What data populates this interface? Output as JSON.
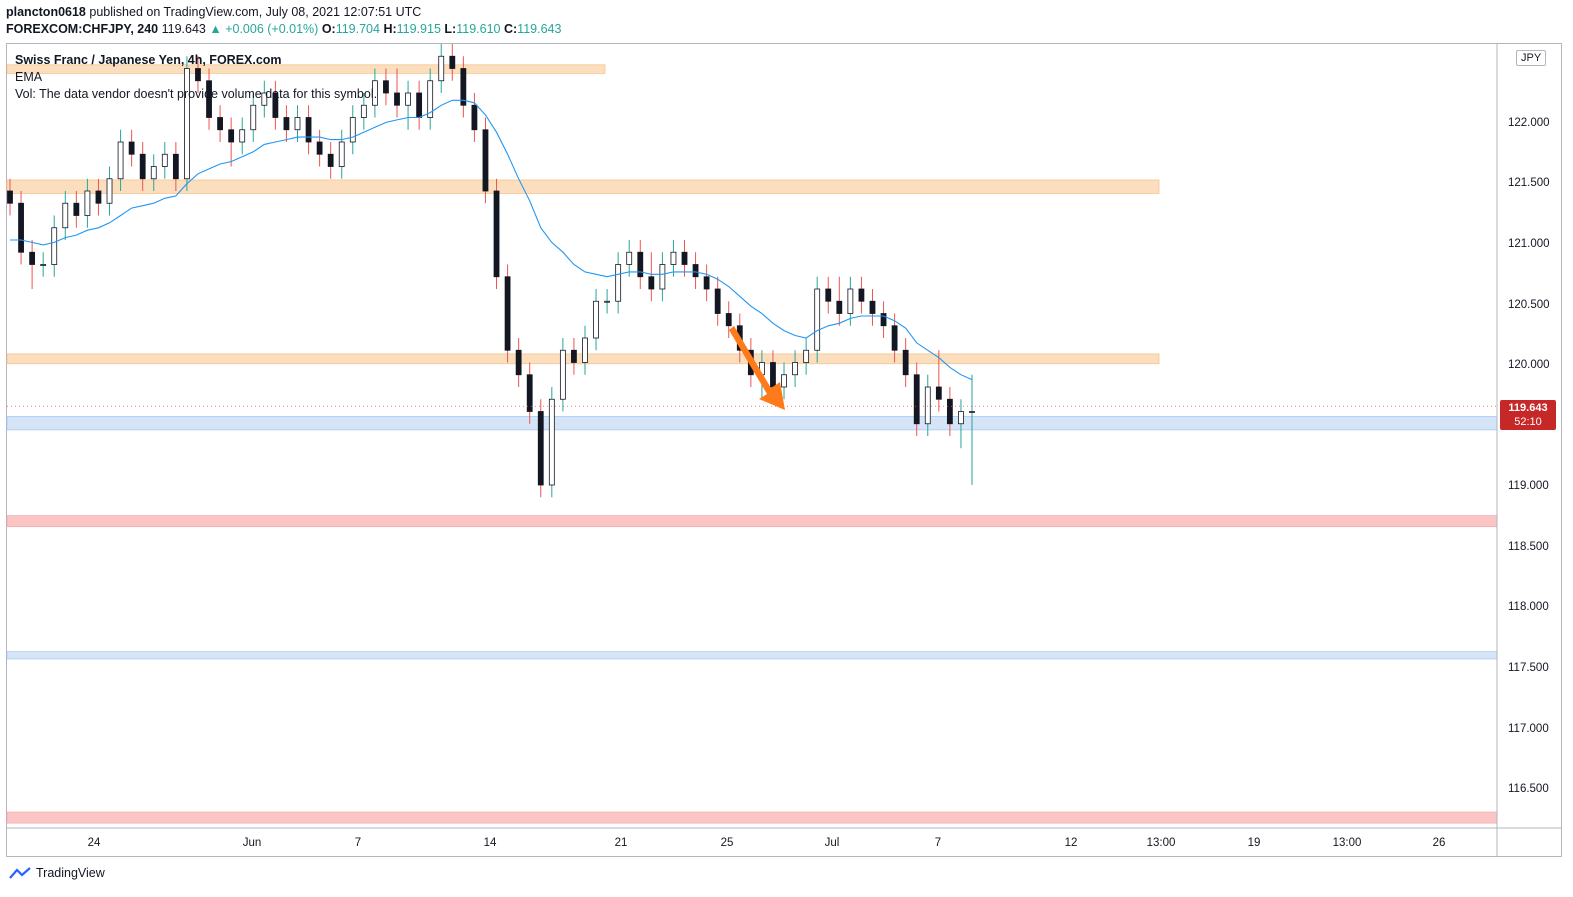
{
  "header": {
    "author": "plancton0618",
    "published_text": "published on TradingView.com, July 08, 2021 12:07:51 UTC",
    "symbol": "FOREXCOM:CHFJPY, 240",
    "last": "119.643",
    "change": "▲ +0.006 (+0.01%)",
    "o_label": "O:",
    "o_value": "119.704",
    "h_label": "H:",
    "h_value": "119.915",
    "l_label": "L:",
    "l_value": "119.610",
    "c_label": "C:",
    "c_value": "119.643"
  },
  "legend": {
    "title": "Swiss Franc / Japanese Yen, 4h, FOREX.com",
    "ema": "EMA",
    "vol": "Vol: The data vendor doesn't provide volume data for this symbol."
  },
  "currency_button": "JPY",
  "price_tag": {
    "price": "119.643",
    "countdown": "52:10"
  },
  "footer": {
    "brand": "TradingView"
  },
  "colors": {
    "up": "#26a69a",
    "down": "#ef5350",
    "candle_body": "#131722",
    "ema": "#2196f3",
    "zone_orange": "#fbd9b3",
    "zone_blue": "#cfe0f7",
    "zone_red": "#fbbcbc",
    "arrow": "#ff7a1a",
    "price_tag": "#c62828"
  },
  "chart_data": {
    "type": "candlestick",
    "y_axis_labels": [
      "122.000",
      "121.500",
      "121.000",
      "120.500",
      "120.000",
      "119.000",
      "118.500",
      "118.000",
      "117.500",
      "117.000",
      "116.500"
    ],
    "ylim": [
      116.2,
      122.6
    ],
    "x_axis_labels": [
      "24",
      "Jun",
      "7",
      "14",
      "21",
      "25",
      "Jul",
      "7",
      "12",
      "13:00",
      "19",
      "13:00",
      "26"
    ],
    "zones": [
      {
        "color": "orange",
        "from": 122.36,
        "to": 122.43
      },
      {
        "color": "orange",
        "from": 121.38,
        "to": 121.49
      },
      {
        "color": "orange",
        "from": 119.99,
        "to": 120.07
      },
      {
        "color": "blue",
        "from": 119.45,
        "to": 119.56
      },
      {
        "color": "red",
        "from": 118.66,
        "to": 118.75
      },
      {
        "color": "blue",
        "from": 117.58,
        "to": 117.64
      },
      {
        "color": "red",
        "from": 116.24,
        "to": 116.33
      }
    ],
    "candles": [
      [
        121.4,
        121.5,
        121.2,
        121.3
      ],
      [
        121.3,
        121.4,
        120.8,
        120.9
      ],
      [
        120.9,
        121.0,
        120.6,
        120.8
      ],
      [
        120.8,
        120.9,
        120.7,
        120.8
      ],
      [
        120.8,
        121.2,
        120.7,
        121.1
      ],
      [
        121.1,
        121.4,
        121.0,
        121.3
      ],
      [
        121.3,
        121.4,
        121.1,
        121.2
      ],
      [
        121.2,
        121.5,
        121.1,
        121.4
      ],
      [
        121.4,
        121.5,
        121.2,
        121.3
      ],
      [
        121.3,
        121.6,
        121.2,
        121.5
      ],
      [
        121.5,
        121.9,
        121.4,
        121.8
      ],
      [
        121.8,
        121.9,
        121.6,
        121.7
      ],
      [
        121.7,
        121.8,
        121.4,
        121.5
      ],
      [
        121.5,
        121.7,
        121.4,
        121.6
      ],
      [
        121.6,
        121.8,
        121.5,
        121.7
      ],
      [
        121.7,
        121.8,
        121.4,
        121.5
      ],
      [
        121.5,
        122.5,
        121.4,
        122.4
      ],
      [
        122.4,
        122.5,
        122.2,
        122.3
      ],
      [
        122.3,
        122.4,
        121.9,
        122.0
      ],
      [
        122.0,
        122.1,
        121.8,
        121.9
      ],
      [
        121.9,
        122.0,
        121.6,
        121.8
      ],
      [
        121.8,
        122.0,
        121.7,
        121.9
      ],
      [
        121.9,
        122.2,
        121.8,
        122.1
      ],
      [
        122.1,
        122.3,
        122.0,
        122.2
      ],
      [
        122.2,
        122.3,
        121.9,
        122.0
      ],
      [
        122.0,
        122.1,
        121.8,
        121.9
      ],
      [
        121.9,
        122.1,
        121.8,
        122.0
      ],
      [
        122.0,
        122.1,
        121.7,
        121.8
      ],
      [
        121.8,
        121.9,
        121.6,
        121.7
      ],
      [
        121.7,
        121.8,
        121.5,
        121.6
      ],
      [
        121.6,
        121.9,
        121.5,
        121.8
      ],
      [
        121.8,
        122.1,
        121.7,
        122.0
      ],
      [
        122.0,
        122.2,
        121.9,
        122.1
      ],
      [
        122.1,
        122.4,
        122.0,
        122.3
      ],
      [
        122.3,
        122.4,
        122.1,
        122.2
      ],
      [
        122.2,
        122.4,
        122.0,
        122.1
      ],
      [
        122.1,
        122.3,
        121.9,
        122.2
      ],
      [
        122.2,
        122.3,
        121.9,
        122.0
      ],
      [
        122.0,
        122.4,
        121.9,
        122.3
      ],
      [
        122.3,
        122.6,
        122.2,
        122.5
      ],
      [
        122.5,
        122.6,
        122.3,
        122.4
      ],
      [
        122.4,
        122.5,
        122.0,
        122.1
      ],
      [
        122.1,
        122.2,
        121.8,
        121.9
      ],
      [
        121.9,
        122.0,
        121.3,
        121.4
      ],
      [
        121.4,
        121.5,
        120.6,
        120.7
      ],
      [
        120.7,
        120.8,
        120.0,
        120.1
      ],
      [
        120.1,
        120.2,
        119.8,
        119.9
      ],
      [
        119.9,
        120.0,
        119.5,
        119.6
      ],
      [
        119.6,
        119.7,
        118.9,
        119.0
      ],
      [
        119.0,
        119.8,
        118.9,
        119.7
      ],
      [
        119.7,
        120.2,
        119.6,
        120.1
      ],
      [
        120.1,
        120.2,
        119.9,
        120.0
      ],
      [
        120.0,
        120.3,
        119.9,
        120.2
      ],
      [
        120.2,
        120.6,
        120.1,
        120.5
      ],
      [
        120.5,
        120.6,
        120.4,
        120.5
      ],
      [
        120.5,
        120.9,
        120.4,
        120.8
      ],
      [
        120.8,
        121.0,
        120.7,
        120.9
      ],
      [
        120.9,
        121.0,
        120.6,
        120.7
      ],
      [
        120.7,
        120.9,
        120.5,
        120.6
      ],
      [
        120.6,
        120.9,
        120.5,
        120.8
      ],
      [
        120.8,
        121.0,
        120.7,
        120.9
      ],
      [
        120.9,
        121.0,
        120.7,
        120.8
      ],
      [
        120.8,
        120.9,
        120.6,
        120.7
      ],
      [
        120.7,
        120.8,
        120.5,
        120.6
      ],
      [
        120.6,
        120.7,
        120.3,
        120.4
      ],
      [
        120.4,
        120.5,
        120.2,
        120.3
      ],
      [
        120.3,
        120.4,
        120.0,
        120.1
      ],
      [
        120.1,
        120.2,
        119.8,
        119.9
      ],
      [
        119.9,
        120.1,
        119.7,
        120.0
      ],
      [
        120.0,
        120.1,
        119.7,
        119.8
      ],
      [
        119.8,
        120.0,
        119.7,
        119.9
      ],
      [
        119.9,
        120.1,
        119.8,
        120.0
      ],
      [
        120.0,
        120.2,
        119.9,
        120.1
      ],
      [
        120.1,
        120.7,
        120.0,
        120.6
      ],
      [
        120.6,
        120.7,
        120.4,
        120.5
      ],
      [
        120.5,
        120.7,
        120.3,
        120.4
      ],
      [
        120.4,
        120.7,
        120.3,
        120.6
      ],
      [
        120.6,
        120.7,
        120.4,
        120.5
      ],
      [
        120.5,
        120.6,
        120.3,
        120.4
      ],
      [
        120.4,
        120.5,
        120.2,
        120.3
      ],
      [
        120.3,
        120.4,
        120.0,
        120.1
      ],
      [
        120.1,
        120.2,
        119.8,
        119.9
      ],
      [
        119.9,
        120.0,
        119.4,
        119.5
      ],
      [
        119.5,
        119.9,
        119.4,
        119.8
      ],
      [
        119.8,
        120.1,
        119.6,
        119.7
      ],
      [
        119.7,
        119.8,
        119.4,
        119.5
      ],
      [
        119.5,
        119.7,
        119.3,
        119.6
      ],
      [
        119.6,
        119.9,
        119.0,
        119.6
      ]
    ],
    "ema": [
      121.0,
      121.0,
      120.98,
      120.96,
      120.98,
      121.02,
      121.04,
      121.08,
      121.1,
      121.14,
      121.2,
      121.26,
      121.28,
      121.3,
      121.34,
      121.36,
      121.46,
      121.54,
      121.58,
      121.62,
      121.64,
      121.68,
      121.72,
      121.78,
      121.8,
      121.82,
      121.84,
      121.84,
      121.84,
      121.82,
      121.82,
      121.84,
      121.88,
      121.92,
      121.96,
      121.98,
      122.0,
      122.0,
      122.04,
      122.1,
      122.14,
      122.14,
      122.12,
      122.02,
      121.88,
      121.7,
      121.5,
      121.32,
      121.1,
      120.98,
      120.9,
      120.8,
      120.74,
      120.72,
      120.7,
      120.72,
      120.74,
      120.74,
      120.72,
      120.72,
      120.74,
      120.74,
      120.74,
      120.72,
      120.68,
      120.62,
      120.54,
      120.46,
      120.4,
      120.32,
      120.26,
      120.22,
      120.2,
      120.26,
      120.3,
      120.32,
      120.36,
      120.38,
      120.38,
      120.38,
      120.34,
      120.28,
      120.16,
      120.1,
      120.04,
      119.96,
      119.9,
      119.86
    ]
  }
}
